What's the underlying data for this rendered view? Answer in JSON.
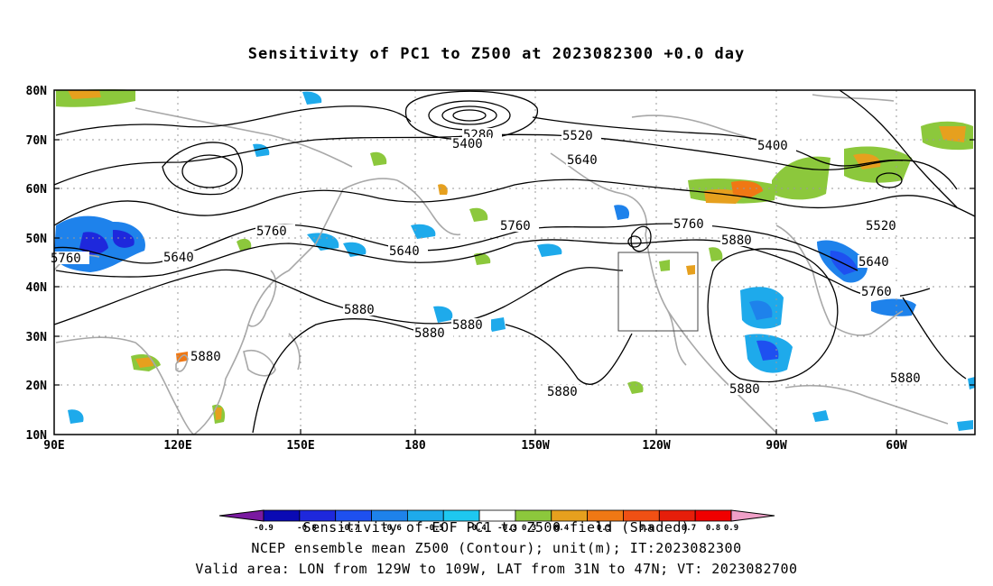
{
  "title": "Sensitivity of PC1 to Z500 at 2023082300 +0.0 day",
  "lat_labels": [
    "80N",
    "70N",
    "60N",
    "50N",
    "40N",
    "30N",
    "20N",
    "10N"
  ],
  "lon_labels": [
    "90E",
    "120E",
    "150E",
    "180",
    "150W",
    "120W",
    "90W",
    "60W"
  ],
  "contour_labels": [
    {
      "text": "5280"
    },
    {
      "text": "5400"
    },
    {
      "text": "5520"
    },
    {
      "text": "5400"
    },
    {
      "text": "5640"
    },
    {
      "text": "5520"
    },
    {
      "text": "5760"
    },
    {
      "text": "5760"
    },
    {
      "text": "5640"
    },
    {
      "text": "5760"
    },
    {
      "text": "5640"
    },
    {
      "text": "5760"
    },
    {
      "text": "5880"
    },
    {
      "text": "5640"
    },
    {
      "text": "5760"
    },
    {
      "text": "5880"
    },
    {
      "text": "5880"
    },
    {
      "text": "5880"
    },
    {
      "text": "5880"
    },
    {
      "text": "5880"
    },
    {
      "text": "5880"
    },
    {
      "text": "5880"
    }
  ],
  "colorbar": {
    "colors": [
      "#7a1aa0",
      "#0a0ab4",
      "#1e28dc",
      "#1e50f0",
      "#1e82eb",
      "#1eaaeb",
      "#1ec8f0",
      "#ffffff",
      "#8cc83c",
      "#e6a01e",
      "#f07814",
      "#f05014",
      "#e61e0a",
      "#f00000",
      "#f0a0c8"
    ],
    "tick_labels": [
      "-0.9",
      "-0.8",
      "-0.7",
      "-0.6",
      "-0.5",
      "-0.4",
      "-0.3",
      "0.3",
      "0.4",
      "0.5",
      "0.6",
      "0.7",
      "0.8",
      "0.9"
    ]
  },
  "footer": {
    "line1": "Sensitivity of EOF PC1 to Z500 field (Shaded)",
    "line2": "NCEP ensemble mean Z500 (Contour); unit(m); IT:2023082300",
    "line3": "Valid area: LON from 129W to 109W, LAT from 31N to 47N; VT: 2023082700"
  },
  "valid_box": {
    "lon_from": "129W",
    "lon_to": "109W",
    "lat_from": "31N",
    "lat_to": "47N"
  }
}
